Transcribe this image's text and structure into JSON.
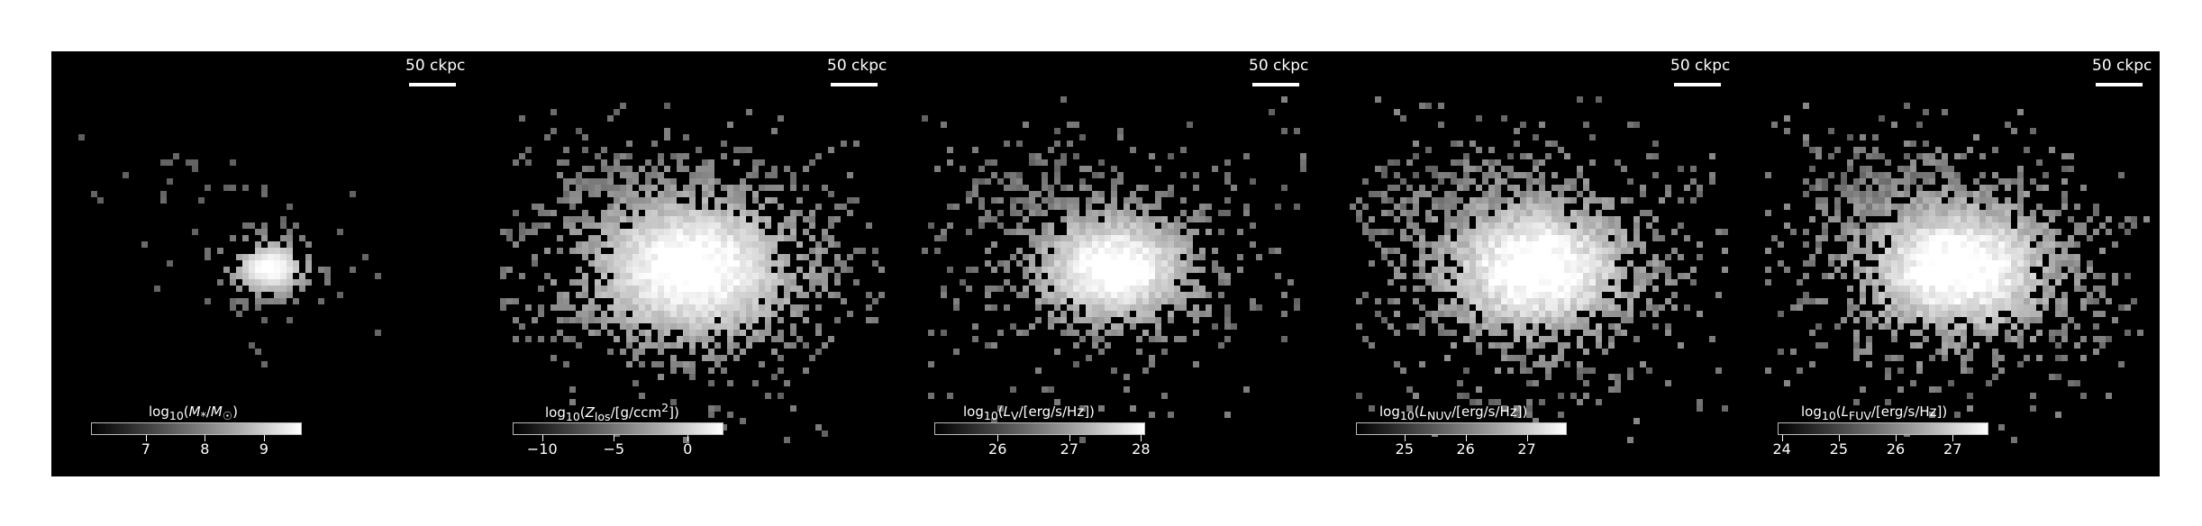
{
  "figure": {
    "scalebar_label": "50 ckpc",
    "panels": [
      {
        "id": "stellar-mass",
        "colorbar_label": "log10(M*/M☉)",
        "ticks": [
          "7",
          "8",
          "9"
        ],
        "tick_positions": [
          0.26,
          0.54,
          0.82
        ],
        "spread": 0.45,
        "core_size": 0.9,
        "noise": 0.25
      },
      {
        "id": "metallicity",
        "colorbar_label": "log10(Zlos/[g/ccm²])",
        "ticks": [
          "−10",
          "−5",
          "0"
        ],
        "tick_positions": [
          0.14,
          0.48,
          0.83
        ],
        "spread": 1.0,
        "core_size": 1.3,
        "noise": 0.65
      },
      {
        "id": "v-band",
        "colorbar_label": "log10(LV/[erg/s/Hz])",
        "ticks": [
          "26",
          "27",
          "28"
        ],
        "tick_positions": [
          0.3,
          0.64,
          0.98
        ],
        "spread": 0.9,
        "core_size": 1.05,
        "noise": 0.7
      },
      {
        "id": "nuv-band",
        "colorbar_label": "log10(LNUV/[erg/s/Hz])",
        "ticks": [
          "25",
          "26",
          "27"
        ],
        "tick_positions": [
          0.23,
          0.52,
          0.81
        ],
        "spread": 1.0,
        "core_size": 1.15,
        "noise": 0.85
      },
      {
        "id": "fuv-band",
        "colorbar_label": "log10(LFUV/[erg/s/Hz])",
        "ticks": [
          "24",
          "25",
          "26",
          "27"
        ],
        "tick_positions": [
          0.02,
          0.29,
          0.56,
          0.83
        ],
        "spread": 1.0,
        "core_size": 1.15,
        "noise": 0.85
      }
    ]
  }
}
